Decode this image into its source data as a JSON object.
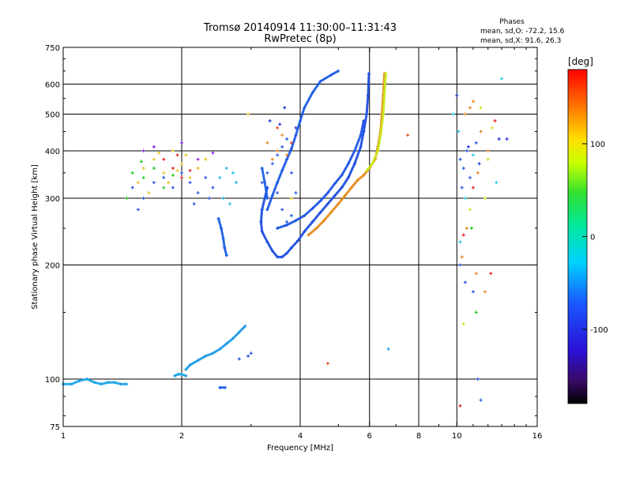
{
  "chart_data": {
    "type": "scatter",
    "title": "Tromsø 20140914 11:30:00–11:31:43",
    "subtitle": "RwPretec (8p)",
    "xlabel": "Frequency [MHz]",
    "ylabel": "Stationary phase Virtual Height [km]",
    "x_scale": "log",
    "y_scale": "log",
    "xlim": [
      1,
      16
    ],
    "ylim": [
      75,
      750
    ],
    "x_ticks": [
      1,
      2,
      4,
      6,
      8,
      10,
      16
    ],
    "x_tick_labels": [
      "1",
      "2",
      "4",
      "6",
      "8",
      "10",
      "16"
    ],
    "x_minor_ticks": [
      3,
      5,
      7,
      9,
      11,
      12,
      13,
      14,
      15
    ],
    "y_ticks": [
      75,
      100,
      200,
      300,
      400,
      500,
      600,
      750
    ],
    "y_tick_labels": [
      "75",
      "100",
      "200",
      "300",
      "400",
      "500",
      "600",
      "750"
    ],
    "y_minor_ticks": [
      80,
      90,
      150,
      250,
      350,
      450,
      550,
      650,
      700
    ],
    "x_grid": [
      2,
      4,
      6,
      8,
      10
    ],
    "y_grid": [
      100,
      200,
      300,
      400,
      500,
      600
    ],
    "stats": {
      "heading": "Phases",
      "line1": "mean, sd,O: -72.2, 15.6",
      "line2": "mean, sd,X:  91.6, 26.3"
    },
    "colorbar": {
      "label": "[deg]",
      "range": [
        -180,
        180
      ],
      "ticks": [
        100,
        0,
        -100
      ],
      "tick_labels": [
        "100",
        "0",
        "-100"
      ]
    },
    "traces": [
      {
        "kind": "line",
        "color": "#1ea5e8",
        "phase": -85,
        "points": [
          [
            1.0,
            97
          ],
          [
            1.05,
            97
          ],
          [
            1.1,
            99
          ],
          [
            1.15,
            100
          ],
          [
            1.2,
            98
          ],
          [
            1.25,
            97
          ],
          [
            1.3,
            98
          ],
          [
            1.35,
            98
          ],
          [
            1.4,
            97
          ],
          [
            1.45,
            97
          ]
        ]
      },
      {
        "kind": "line",
        "color": "#1ea5e8",
        "phase": -85,
        "points": [
          [
            1.92,
            102
          ],
          [
            1.96,
            103
          ],
          [
            2.0,
            103
          ],
          [
            2.05,
            102
          ]
        ]
      },
      {
        "kind": "line",
        "color": "#1e9ae8",
        "phase": -88,
        "points": [
          [
            2.05,
            106
          ],
          [
            2.1,
            109
          ],
          [
            2.2,
            112
          ],
          [
            2.3,
            115
          ],
          [
            2.4,
            117
          ],
          [
            2.5,
            120
          ],
          [
            2.6,
            124
          ],
          [
            2.7,
            128
          ],
          [
            2.8,
            133
          ],
          [
            2.9,
            138
          ]
        ]
      },
      {
        "kind": "line",
        "color": "#1a5fe6",
        "phase": -105,
        "points": [
          [
            2.5,
            95
          ],
          [
            2.58,
            95
          ]
        ]
      },
      {
        "kind": "line",
        "color": "#1a5fe6",
        "phase": -105,
        "points": [
          [
            2.48,
            265
          ],
          [
            2.52,
            250
          ],
          [
            2.55,
            235
          ],
          [
            2.57,
            222
          ],
          [
            2.6,
            212
          ]
        ]
      },
      {
        "kind": "line",
        "color": "#1e4ee0",
        "phase": -110,
        "points": [
          [
            3.3,
            320
          ],
          [
            3.25,
            300
          ],
          [
            3.2,
            280
          ],
          [
            3.18,
            260
          ],
          [
            3.2,
            245
          ],
          [
            3.3,
            230
          ],
          [
            3.4,
            218
          ],
          [
            3.5,
            210
          ],
          [
            3.6,
            210
          ],
          [
            3.7,
            215
          ],
          [
            3.8,
            222
          ],
          [
            3.95,
            232
          ],
          [
            4.1,
            245
          ],
          [
            4.3,
            260
          ],
          [
            4.5,
            275
          ],
          [
            4.7,
            290
          ],
          [
            4.9,
            305
          ],
          [
            5.1,
            320
          ],
          [
            5.3,
            340
          ],
          [
            5.5,
            370
          ],
          [
            5.7,
            410
          ],
          [
            5.8,
            450
          ],
          [
            5.9,
            500
          ],
          [
            5.95,
            560
          ],
          [
            5.98,
            640
          ]
        ]
      },
      {
        "kind": "line",
        "color": "#1e55e4",
        "phase": -108,
        "points": [
          [
            3.5,
            250
          ],
          [
            3.7,
            255
          ],
          [
            3.9,
            262
          ],
          [
            4.1,
            270
          ],
          [
            4.3,
            282
          ],
          [
            4.5,
            295
          ],
          [
            4.7,
            310
          ],
          [
            4.9,
            328
          ],
          [
            5.1,
            345
          ],
          [
            5.3,
            370
          ],
          [
            5.5,
            400
          ],
          [
            5.7,
            440
          ],
          [
            5.8,
            480
          ]
        ]
      },
      {
        "kind": "line",
        "color": "#1e5be6",
        "phase": -106,
        "points": [
          [
            3.3,
            280
          ],
          [
            3.4,
            305
          ],
          [
            3.5,
            330
          ],
          [
            3.6,
            355
          ],
          [
            3.7,
            380
          ],
          [
            3.8,
            405
          ],
          [
            3.9,
            440
          ],
          [
            4.0,
            480
          ],
          [
            4.1,
            520
          ],
          [
            4.3,
            570
          ],
          [
            4.5,
            610
          ],
          [
            4.8,
            635
          ],
          [
            5.0,
            650
          ]
        ]
      },
      {
        "kind": "line",
        "color": "#e88a1e",
        "phase": 115,
        "points": [
          [
            4.2,
            240
          ],
          [
            4.4,
            250
          ],
          [
            4.6,
            262
          ],
          [
            4.8,
            276
          ],
          [
            5.0,
            290
          ],
          [
            5.2,
            305
          ],
          [
            5.4,
            320
          ],
          [
            5.6,
            335
          ],
          [
            5.8,
            345
          ],
          [
            6.0,
            360
          ],
          [
            6.2,
            380
          ],
          [
            6.3,
            410
          ],
          [
            6.4,
            450
          ],
          [
            6.45,
            500
          ],
          [
            6.5,
            560
          ],
          [
            6.55,
            640
          ]
        ]
      },
      {
        "kind": "line",
        "color": "#c8e81e",
        "phase": 95,
        "points": [
          [
            5.9,
            355
          ],
          [
            6.1,
            370
          ],
          [
            6.3,
            400
          ],
          [
            6.4,
            440
          ],
          [
            6.5,
            500
          ],
          [
            6.55,
            570
          ],
          [
            6.6,
            640
          ]
        ]
      },
      {
        "kind": "line",
        "color": "#1e60e6",
        "phase": -104,
        "points": [
          [
            3.2,
            360
          ],
          [
            3.25,
            330
          ],
          [
            3.3,
            300
          ]
        ]
      },
      {
        "kind": "scatter",
        "color": "#e8c41e",
        "phase": 90,
        "points": [
          [
            1.55,
            330
          ],
          [
            1.6,
            360
          ],
          [
            1.7,
            380
          ],
          [
            1.8,
            350
          ],
          [
            1.9,
            400
          ],
          [
            2.0,
            370
          ],
          [
            2.1,
            340
          ],
          [
            2.2,
            360
          ],
          [
            2.3,
            380
          ],
          [
            1.65,
            310
          ],
          [
            1.75,
            395
          ],
          [
            1.85,
            330
          ],
          [
            1.95,
            355
          ],
          [
            2.05,
            390
          ]
        ]
      },
      {
        "kind": "scatter",
        "color": "#1e55e4",
        "phase": -108,
        "points": [
          [
            1.5,
            320
          ],
          [
            1.6,
            300
          ],
          [
            1.7,
            330
          ],
          [
            1.8,
            340
          ],
          [
            1.9,
            320
          ],
          [
            2.0,
            350
          ],
          [
            2.1,
            330
          ],
          [
            2.2,
            310
          ],
          [
            2.3,
            340
          ],
          [
            2.4,
            320
          ],
          [
            1.55,
            280
          ],
          [
            2.15,
            290
          ],
          [
            2.35,
            300
          ]
        ]
      },
      {
        "kind": "scatter",
        "color": "#1ec81e",
        "phase": 10,
        "points": [
          [
            1.5,
            350
          ],
          [
            1.6,
            340
          ],
          [
            1.7,
            360
          ],
          [
            1.8,
            320
          ],
          [
            1.9,
            345
          ],
          [
            1.45,
            300
          ],
          [
            1.58,
            375
          ]
        ]
      },
      {
        "kind": "scatter",
        "color": "#e81e1e",
        "phase": 170,
        "points": [
          [
            1.8,
            380
          ],
          [
            1.9,
            360
          ],
          [
            2.0,
            340
          ],
          [
            2.1,
            355
          ],
          [
            1.95,
            390
          ]
        ]
      },
      {
        "kind": "scatter",
        "color": "#8a1ee8",
        "phase": -140,
        "points": [
          [
            1.6,
            400
          ],
          [
            1.7,
            410
          ],
          [
            2.0,
            420
          ],
          [
            2.2,
            380
          ],
          [
            2.4,
            395
          ]
        ]
      },
      {
        "kind": "scatter",
        "color": "#1eb4e8",
        "phase": -78,
        "points": [
          [
            2.5,
            340
          ],
          [
            2.6,
            360
          ],
          [
            2.7,
            350
          ],
          [
            2.55,
            300
          ],
          [
            2.65,
            290
          ],
          [
            2.75,
            330
          ]
        ]
      },
      {
        "kind": "scatter",
        "color": "#1e55e4",
        "phase": -108,
        "points": [
          [
            3.2,
            330
          ],
          [
            3.3,
            350
          ],
          [
            3.4,
            370
          ],
          [
            3.5,
            390
          ],
          [
            3.6,
            410
          ],
          [
            3.7,
            430
          ],
          [
            3.8,
            350
          ],
          [
            3.9,
            310
          ],
          [
            3.5,
            310
          ],
          [
            3.6,
            280
          ],
          [
            3.7,
            260
          ],
          [
            3.8,
            270
          ]
        ]
      },
      {
        "kind": "scatter",
        "color": "#e8821e",
        "phase": 120,
        "points": [
          [
            3.3,
            420
          ],
          [
            3.5,
            400
          ],
          [
            3.6,
            440
          ],
          [
            3.4,
            380
          ],
          [
            3.7,
            390
          ]
        ]
      },
      {
        "kind": "scatter",
        "color": "#1e32d8",
        "phase": -118,
        "points": [
          [
            3.35,
            480
          ],
          [
            3.55,
            470
          ],
          [
            3.65,
            520
          ],
          [
            3.9,
            460
          ]
        ]
      },
      {
        "kind": "scatter",
        "color": "#e84a1e",
        "phase": 145,
        "points": [
          [
            3.5,
            460
          ],
          [
            3.8,
            420
          ],
          [
            4.7,
            110
          ],
          [
            7.5,
            440
          ]
        ]
      },
      {
        "kind": "scatter",
        "color": "#e8c81e",
        "phase": 90,
        "points": [
          [
            2.95,
            500
          ],
          [
            3.8,
            300
          ]
        ]
      },
      {
        "kind": "scatter",
        "color": "#1e4ee0",
        "phase": -110,
        "points": [
          [
            2.8,
            113
          ],
          [
            2.95,
            115
          ],
          [
            3.0,
            117
          ]
        ]
      },
      {
        "kind": "scatter",
        "color": "#1ea0e8",
        "phase": -88,
        "points": [
          [
            6.7,
            120
          ]
        ]
      },
      {
        "kind": "scatter",
        "color": "#1e55e4",
        "phase": -108,
        "points": [
          [
            10.2,
            380
          ],
          [
            10.4,
            360
          ],
          [
            10.3,
            320
          ],
          [
            10.6,
            400
          ],
          [
            10.8,
            340
          ],
          [
            11.2,
            420
          ],
          [
            10.2,
            200
          ],
          [
            10.5,
            180
          ],
          [
            11.0,
            170
          ],
          [
            11.3,
            100
          ],
          [
            11.5,
            88
          ]
        ]
      },
      {
        "kind": "scatter",
        "color": "#e8821e",
        "phase": 120,
        "points": [
          [
            10.5,
            500
          ],
          [
            10.8,
            520
          ],
          [
            11.0,
            540
          ],
          [
            11.5,
            450
          ],
          [
            11.3,
            350
          ],
          [
            10.6,
            250
          ],
          [
            10.3,
            210
          ],
          [
            11.2,
            190
          ],
          [
            11.8,
            170
          ],
          [
            12.0,
            400
          ]
        ]
      },
      {
        "kind": "scatter",
        "color": "#e81e1e",
        "phase": 170,
        "points": [
          [
            10.2,
            85
          ],
          [
            10.4,
            240
          ],
          [
            11.0,
            320
          ],
          [
            12.5,
            480
          ],
          [
            12.2,
            190
          ]
        ]
      },
      {
        "kind": "scatter",
        "color": "#1ec8e8",
        "phase": -60,
        "points": [
          [
            9.8,
            500
          ],
          [
            10.1,
            450
          ],
          [
            10.5,
            300
          ],
          [
            11.0,
            390
          ],
          [
            12.6,
            330
          ],
          [
            13.0,
            620
          ],
          [
            10.2,
            230
          ]
        ]
      },
      {
        "kind": "scatter",
        "color": "#c8e81e",
        "phase": 95,
        "points": [
          [
            10.4,
            140
          ],
          [
            11.5,
            520
          ],
          [
            12.0,
            380
          ],
          [
            11.8,
            300
          ],
          [
            12.3,
            460
          ],
          [
            10.8,
            280
          ]
        ]
      },
      {
        "kind": "scatter",
        "color": "#1ec81e",
        "phase": 10,
        "points": [
          [
            11.2,
            150
          ],
          [
            10.9,
            250
          ]
        ]
      },
      {
        "kind": "scatter",
        "color": "#1e32d8",
        "phase": -118,
        "points": [
          [
            10.0,
            560
          ],
          [
            10.7,
            410
          ],
          [
            12.8,
            430
          ],
          [
            11.4,
            370
          ],
          [
            13.4,
            430
          ]
        ]
      }
    ]
  }
}
